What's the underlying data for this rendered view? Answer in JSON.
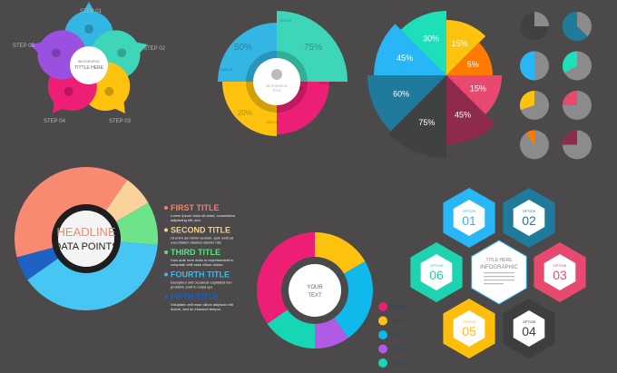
{
  "colors": {
    "background": "#4b494a",
    "cyan": "#34b6e4",
    "teal": "#3dd6b8",
    "yellow": "#ffc20e",
    "pink": "#ec1f75",
    "purple": "#9b51e0",
    "orange": "#ff7a00",
    "crimson": "#8e2a4c",
    "dark": "#3f4142",
    "navy": "#1f7a9c",
    "grey": "#8b8b8d"
  },
  "steps": {
    "center_line1": "INFOGRAPHIC",
    "center_line2": "TITTLE HERE",
    "items": [
      {
        "label": "STEP 01",
        "color": "#34b6e4",
        "icon": "chat-bubble-icon"
      },
      {
        "label": "STEP 02",
        "color": "#3dd6b8",
        "icon": "gear-icon"
      },
      {
        "label": "STEP 03",
        "color": "#ffc20e",
        "icon": "lightbulb-icon"
      },
      {
        "label": "STEP 04",
        "color": "#ec1f75",
        "icon": "briefcase-icon"
      },
      {
        "label": "STEP 05",
        "color": "#9b51e0",
        "icon": "pie-chart-icon"
      }
    ]
  },
  "quadrant_chart": {
    "center_line1": "INFOGRAPHIC",
    "center_line2": "TITLE",
    "icon": "lightbulb-icon",
    "segments": [
      {
        "value": "75%",
        "label": "DATA 01",
        "color": "#3dd6b8"
      },
      {
        "value": "5%",
        "label": "DATA 02",
        "color": "#ec1f75"
      },
      {
        "value": "20%",
        "label": "DATA 03",
        "color": "#ffc20e"
      },
      {
        "value": "50%",
        "label": "DATA 04",
        "color": "#34b6e4"
      }
    ]
  },
  "rose_chart": {
    "segments": [
      {
        "value": "15%",
        "color": "#ffc20e"
      },
      {
        "value": "5%",
        "color": "#ff7a00"
      },
      {
        "value": "15%",
        "color": "#e84a6f"
      },
      {
        "value": "45%",
        "color": "#8e2a4c"
      },
      {
        "value": "75%",
        "color": "#3f4142"
      },
      {
        "value": "60%",
        "color": "#1f7a9c"
      },
      {
        "value": "45%",
        "color": "#29b6f6"
      },
      {
        "value": "30%",
        "color": "#1de0b8"
      }
    ]
  },
  "mini_pies": [
    {
      "fraction": 0.75,
      "color": "#3f4142"
    },
    {
      "fraction": 0.63,
      "color": "#1f7a9c"
    },
    {
      "fraction": 0.5,
      "color": "#29b6f6"
    },
    {
      "fraction": 0.33,
      "color": "#1de0b8"
    },
    {
      "fraction": 0.3,
      "color": "#ffc20e"
    },
    {
      "fraction": 0.25,
      "color": "#e84a6f"
    },
    {
      "fraction": 0.1,
      "color": "#ff7a00"
    },
    {
      "fraction": 0.25,
      "color": "#8e2a4c"
    }
  ],
  "headline": {
    "line1": "HEADLINE",
    "line2": "DATA POINTS",
    "items": [
      {
        "title": "FIRST TITLE",
        "text1": "Lorem ipsum dolor sit amet, consectetur",
        "text2": "adipiscing elit, sed.",
        "color": "#f97e6a"
      },
      {
        "title": "SECOND TITLE",
        "text1": "Ut enim ad minim veniam, quis nostrud",
        "text2": "exercitation ullamco laboris nisi.",
        "color": "#f9cf8e"
      },
      {
        "title": "THIRD TITLE",
        "text1": "Duis aute irure dolor in reprehenderit in",
        "text2": "voluptate velit esse cillum dolore.",
        "color": "#5ee07e"
      },
      {
        "title": "FOURTH TITLE",
        "text1": "Excepteur sint occaecat cupidatat non",
        "text2": "proident, sunt in culpa qui.",
        "color": "#3db8f0"
      },
      {
        "title": "FIFTH TITLE",
        "text1": "Voluptate velit esse cillum adipiscin elit",
        "text2": "dolore, sed do eiusmod tempor.",
        "color": "#1f5fbf"
      }
    ]
  },
  "donut": {
    "center_line1": "YOUR",
    "center_line2": "TEXT",
    "legend": [
      {
        "label": "TITLE 01",
        "color": "#ec1f75"
      },
      {
        "label": "TITLE 02",
        "color": "#ffc20e"
      },
      {
        "label": "TITLE 03",
        "color": "#10b9ec"
      },
      {
        "label": "TITLE 04",
        "color": "#b05be6"
      },
      {
        "label": "TITLE 05",
        "color": "#17d6b4"
      }
    ]
  },
  "hex": {
    "center_line1": "TITLE HERE",
    "center_line2": "INFOGRAPHIC",
    "options": [
      {
        "label": "OPTION",
        "number": "01",
        "color": "#29b6f6"
      },
      {
        "label": "OPTION",
        "number": "02",
        "color": "#1f7a9c"
      },
      {
        "label": "OPTION",
        "number": "03",
        "color": "#e84a6f"
      },
      {
        "label": "OPTION",
        "number": "04",
        "color": "#3c3e3f"
      },
      {
        "label": "OPTION",
        "number": "05",
        "color": "#ffbe0b"
      },
      {
        "label": "OPTION",
        "number": "06",
        "color": "#1dd3b0"
      }
    ]
  }
}
